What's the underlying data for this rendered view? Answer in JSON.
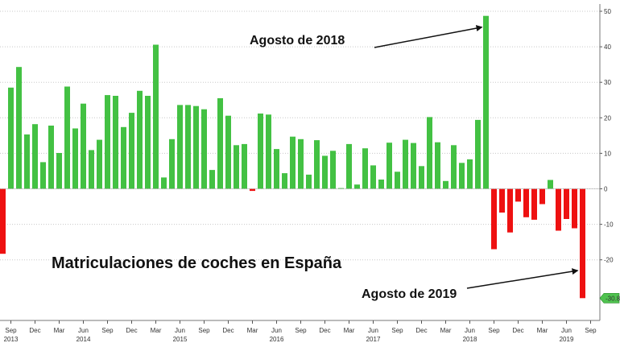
{
  "chart_data": {
    "type": "bar",
    "title": "Matriculaciones de coches en España",
    "xlabel": "",
    "ylabel": "",
    "ylim": [
      -34,
      53
    ],
    "y_ticks": [
      50,
      40,
      30,
      20,
      10,
      0,
      -10,
      -20
    ],
    "y_tick_labels": [
      "50",
      "40",
      "30",
      "20",
      "10",
      "0",
      "-10",
      "-20"
    ],
    "x_tick_labels": [
      "Sep",
      "Dec",
      "Mar",
      "Jun",
      "Sep",
      "Dec",
      "Mar",
      "Jun",
      "Sep",
      "Dec",
      "Mar",
      "Jun",
      "Sep",
      "Dec",
      "Mar",
      "Jun",
      "Sep",
      "Dec",
      "Mar",
      "Jun",
      "Sep",
      "Dec",
      "Mar",
      "Jun",
      "Sep"
    ],
    "year_labels": [
      {
        "label": "2013",
        "month_index": 0
      },
      {
        "label": "2014",
        "month_index": 9
      },
      {
        "label": "2015",
        "month_index": 21
      },
      {
        "label": "2016",
        "month_index": 33
      },
      {
        "label": "2017",
        "month_index": 45
      },
      {
        "label": "2018",
        "month_index": 57
      },
      {
        "label": "2019",
        "month_index": 69
      }
    ],
    "categories_start": "2013-08",
    "categories_end": "2019-08",
    "values": [
      -18.3,
      28.5,
      34.3,
      15.3,
      18.2,
      7.5,
      17.8,
      10.1,
      28.8,
      17.0,
      24.0,
      10.9,
      13.8,
      26.4,
      26.2,
      17.4,
      21.4,
      27.6,
      26.2,
      40.6,
      3.2,
      14.0,
      23.6,
      23.6,
      23.3,
      22.4,
      5.3,
      25.5,
      20.6,
      12.3,
      12.6,
      -0.6,
      21.2,
      20.9,
      11.2,
      4.4,
      14.7,
      14.0,
      4.0,
      13.7,
      9.3,
      10.7,
      0.2,
      12.6,
      1.2,
      11.4,
      6.6,
      2.6,
      13.0,
      4.8,
      13.8,
      12.9,
      6.4,
      20.2,
      13.1,
      2.2,
      12.3,
      7.3,
      8.3,
      19.4,
      48.7,
      -17.0,
      -6.7,
      -12.3,
      -3.6,
      -8.0,
      -8.7,
      -4.3,
      2.5,
      -11.8,
      -8.5,
      -11.1,
      -30.8
    ],
    "positive_color": "#43c143",
    "negative_color": "#ee1111",
    "last_value_label": "-30.8",
    "annotations": [
      {
        "text": "Agosto de 2018",
        "target_index": 60
      },
      {
        "text": "Agosto de 2019",
        "target_index": 72
      }
    ]
  }
}
